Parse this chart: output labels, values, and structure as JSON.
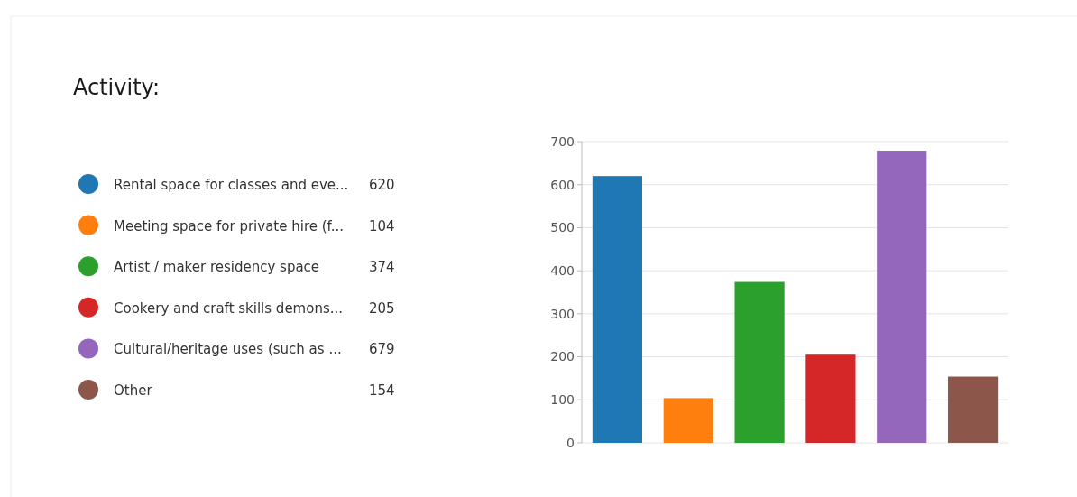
{
  "chart_data": {
    "type": "bar",
    "title": "Activity:",
    "categories": [
      null
    ],
    "series": [
      {
        "name": "Rental space for classes and eve...",
        "color": "#1f77b4",
        "values": [
          620
        ]
      },
      {
        "name": "Meeting space for private hire (f...",
        "color": "#ff7f0e",
        "values": [
          104
        ]
      },
      {
        "name": "Artist / maker residency space",
        "color": "#2ca02c",
        "values": [
          374
        ]
      },
      {
        "name": "Cookery and craft skills demons...",
        "color": "#d62728",
        "values": [
          205
        ]
      },
      {
        "name": "Cultural/heritage uses (such as ...",
        "color": "#9467bd",
        "values": [
          679
        ]
      },
      {
        "name": "Other",
        "color": "#8c564b",
        "values": [
          154
        ]
      }
    ],
    "ylim": [
      0,
      700
    ],
    "yticks": [
      0,
      100,
      200,
      300,
      400,
      500,
      600,
      700
    ],
    "annotations": [
      "620",
      "104",
      "374",
      "205",
      "679",
      "154"
    ],
    "grid": "y",
    "legend": "left",
    "tick_labels": "y"
  }
}
